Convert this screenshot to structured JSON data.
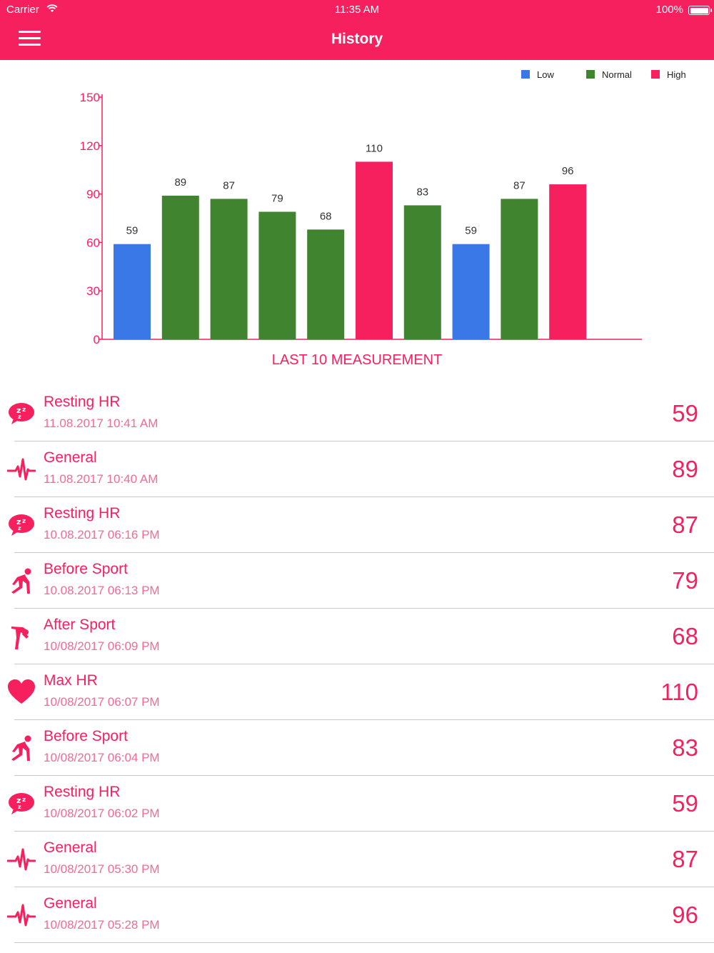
{
  "status_bar": {
    "carrier": "Carrier",
    "time": "11:35 AM",
    "battery": "100%"
  },
  "header": {
    "title": "History",
    "menu_icon": "hamburger-menu-icon"
  },
  "colors": {
    "accent": "#f7205e",
    "low": "#3b78e7",
    "normal": "#41842f",
    "high": "#f7205e"
  },
  "chart_data": {
    "type": "bar",
    "title": "LAST 10 MEASUREMENT",
    "values": [
      59,
      89,
      87,
      79,
      68,
      110,
      83,
      59,
      87,
      96
    ],
    "categories": [
      "Low",
      "Normal",
      "Normal",
      "Normal",
      "Normal",
      "High",
      "Normal",
      "Low",
      "Normal",
      "High"
    ],
    "legend": [
      "Low",
      "Normal",
      "High"
    ],
    "legend_position": "top-right",
    "yticks": [
      0,
      30,
      60,
      90,
      120,
      150
    ],
    "ylim": [
      0,
      150
    ],
    "grid": false
  },
  "measurements": [
    {
      "type": "Resting HR",
      "icon": "sleep-bubble-icon",
      "date": "11.08.2017 10:41 AM",
      "value": "59"
    },
    {
      "type": "General",
      "icon": "pulse-line-icon",
      "date": "11.08.2017 10:40 AM",
      "value": "89"
    },
    {
      "type": "Resting HR",
      "icon": "sleep-bubble-icon",
      "date": "10.08.2017 06:16 PM",
      "value": "87"
    },
    {
      "type": "Before Sport",
      "icon": "runner-start-icon",
      "date": "10.08.2017 06:13 PM",
      "value": "79"
    },
    {
      "type": "After Sport",
      "icon": "tired-runner-icon",
      "date": "10/08/2017 06:09 PM",
      "value": "68"
    },
    {
      "type": "Max HR",
      "icon": "heart-icon",
      "date": "10/08/2017 06:07 PM",
      "value": "110"
    },
    {
      "type": "Before Sport",
      "icon": "runner-start-icon",
      "date": "10/08/2017 06:04 PM",
      "value": "83"
    },
    {
      "type": "Resting HR",
      "icon": "sleep-bubble-icon",
      "date": "10/08/2017 06:02 PM",
      "value": "59"
    },
    {
      "type": "General",
      "icon": "pulse-line-icon",
      "date": "10/08/2017 05:30 PM",
      "value": "87"
    },
    {
      "type": "General",
      "icon": "pulse-line-icon",
      "date": "10/08/2017 05:28 PM",
      "value": "96"
    }
  ]
}
